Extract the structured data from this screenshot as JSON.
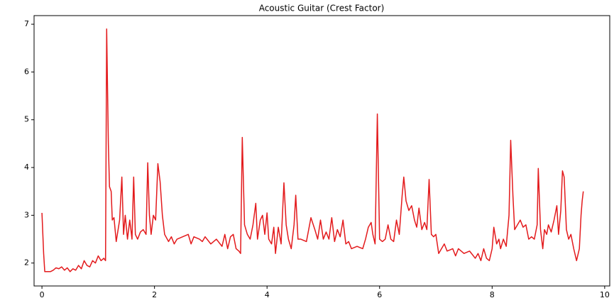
{
  "chart_data": {
    "type": "line",
    "title": "Acoustic Guitar (Crest Factor)",
    "color": "#e31a1c",
    "x": [
      0,
      0.03,
      0.05,
      0.15,
      0.2,
      0.25,
      0.3,
      0.35,
      0.4,
      0.45,
      0.5,
      0.55,
      0.6,
      0.65,
      0.7,
      0.75,
      0.8,
      0.85,
      0.9,
      0.95,
      1.0,
      1.05,
      1.1,
      1.13,
      1.15,
      1.18,
      1.2,
      1.23,
      1.25,
      1.28,
      1.32,
      1.38,
      1.42,
      1.45,
      1.48,
      1.52,
      1.56,
      1.6,
      1.63,
      1.66,
      1.7,
      1.75,
      1.8,
      1.85,
      1.88,
      1.91,
      1.94,
      1.98,
      2.02,
      2.06,
      2.1,
      2.14,
      2.18,
      2.25,
      2.3,
      2.35,
      2.4,
      2.5,
      2.6,
      2.65,
      2.7,
      2.8,
      2.85,
      2.9,
      3.0,
      3.1,
      3.2,
      3.25,
      3.3,
      3.35,
      3.4,
      3.45,
      3.5,
      3.53,
      3.56,
      3.6,
      3.65,
      3.7,
      3.75,
      3.8,
      3.83,
      3.88,
      3.92,
      3.96,
      4.0,
      4.03,
      4.08,
      4.12,
      4.15,
      4.2,
      4.25,
      4.3,
      4.34,
      4.38,
      4.43,
      4.48,
      4.51,
      4.55,
      4.6,
      4.7,
      4.78,
      4.85,
      4.9,
      4.95,
      5.0,
      5.05,
      5.1,
      5.15,
      5.2,
      5.25,
      5.3,
      5.35,
      5.4,
      5.45,
      5.5,
      5.6,
      5.7,
      5.75,
      5.8,
      5.85,
      5.88,
      5.92,
      5.96,
      6.0,
      6.05,
      6.1,
      6.15,
      6.2,
      6.25,
      6.3,
      6.35,
      6.4,
      6.43,
      6.47,
      6.52,
      6.57,
      6.62,
      6.66,
      6.7,
      6.75,
      6.8,
      6.84,
      6.88,
      6.92,
      6.96,
      7.0,
      7.05,
      7.1,
      7.15,
      7.2,
      7.3,
      7.35,
      7.4,
      7.5,
      7.6,
      7.7,
      7.75,
      7.8,
      7.85,
      7.9,
      7.95,
      8.0,
      8.03,
      8.08,
      8.12,
      8.15,
      8.2,
      8.25,
      8.3,
      8.33,
      8.37,
      8.4,
      8.45,
      8.5,
      8.55,
      8.6,
      8.65,
      8.7,
      8.75,
      8.8,
      8.82,
      8.86,
      8.9,
      8.93,
      8.97,
      9.0,
      9.05,
      9.1,
      9.15,
      9.18,
      9.22,
      9.25,
      9.28,
      9.32,
      9.36,
      9.4,
      9.45,
      9.5,
      9.55,
      9.58,
      9.6,
      9.62
    ],
    "values": [
      3.05,
      2.2,
      1.82,
      1.82,
      1.85,
      1.9,
      1.88,
      1.92,
      1.85,
      1.9,
      1.82,
      1.88,
      1.85,
      1.95,
      1.88,
      2.05,
      1.95,
      1.92,
      2.05,
      2.0,
      2.15,
      2.05,
      2.1,
      2.05,
      6.9,
      4.5,
      3.6,
      3.5,
      2.9,
      2.95,
      2.45,
      2.9,
      3.8,
      2.6,
      3.0,
      2.5,
      2.9,
      2.5,
      3.8,
      2.6,
      2.5,
      2.65,
      2.7,
      2.6,
      4.1,
      3.0,
      2.6,
      3.0,
      2.9,
      4.08,
      3.7,
      3.0,
      2.6,
      2.45,
      2.55,
      2.4,
      2.5,
      2.55,
      2.6,
      2.4,
      2.55,
      2.5,
      2.45,
      2.55,
      2.4,
      2.5,
      2.35,
      2.6,
      2.3,
      2.55,
      2.6,
      2.3,
      2.25,
      2.2,
      4.63,
      2.8,
      2.6,
      2.5,
      2.8,
      3.25,
      2.5,
      2.9,
      3.0,
      2.6,
      3.05,
      2.5,
      2.4,
      2.75,
      2.2,
      2.75,
      2.4,
      3.68,
      2.8,
      2.5,
      2.3,
      2.8,
      3.42,
      2.5,
      2.5,
      2.45,
      2.95,
      2.7,
      2.5,
      2.9,
      2.5,
      2.65,
      2.5,
      2.95,
      2.45,
      2.7,
      2.55,
      2.9,
      2.4,
      2.45,
      2.3,
      2.35,
      2.3,
      2.5,
      2.75,
      2.85,
      2.6,
      2.4,
      5.12,
      2.5,
      2.45,
      2.5,
      2.8,
      2.5,
      2.45,
      2.9,
      2.6,
      3.4,
      3.8,
      3.3,
      3.1,
      3.2,
      2.9,
      2.75,
      3.15,
      2.7,
      2.85,
      2.7,
      3.75,
      2.6,
      2.55,
      2.6,
      2.2,
      2.3,
      2.4,
      2.25,
      2.3,
      2.15,
      2.3,
      2.2,
      2.25,
      2.1,
      2.2,
      2.05,
      2.3,
      2.1,
      2.05,
      2.3,
      2.75,
      2.4,
      2.5,
      2.3,
      2.5,
      2.35,
      3.0,
      4.57,
      3.4,
      2.7,
      2.8,
      2.9,
      2.75,
      2.8,
      2.5,
      2.55,
      2.5,
      2.8,
      3.98,
      2.7,
      2.3,
      2.7,
      2.6,
      2.8,
      2.65,
      2.9,
      3.2,
      2.6,
      3.1,
      3.93,
      3.8,
      2.7,
      2.5,
      2.6,
      2.3,
      2.05,
      2.3,
      3.0,
      3.3,
      3.5
    ],
    "xlim": [
      -0.14,
      10.09
    ],
    "xticks": [
      0,
      2,
      4,
      6,
      8,
      10
    ],
    "ylim": [
      1.52,
      7.18
    ],
    "yticks": [
      2,
      3,
      4,
      5,
      6,
      7
    ]
  }
}
